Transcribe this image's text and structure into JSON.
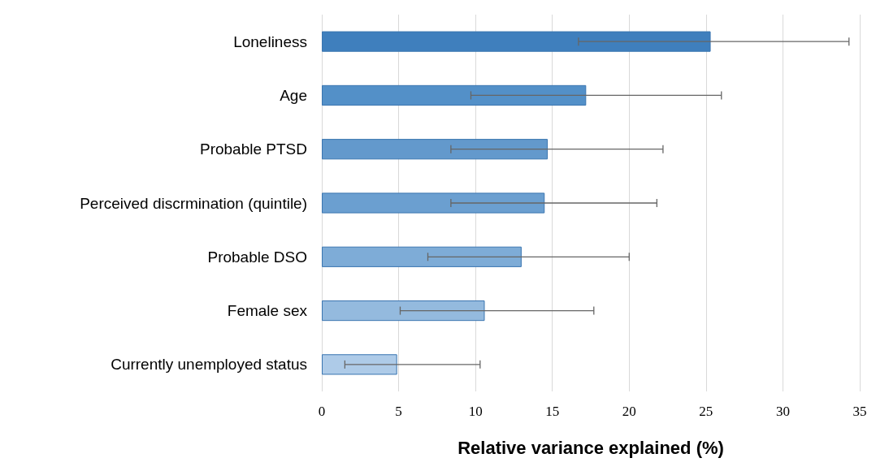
{
  "chart_data": {
    "type": "bar",
    "orientation": "horizontal",
    "xlabel": "Relative variance explained (%)",
    "categories": [
      "Loneliness",
      "Age",
      "Probable PTSD",
      "Perceived discrmination (quintile)",
      "Probable DSO",
      "Female sex",
      "Currently unemployed status"
    ],
    "values": [
      25.3,
      17.2,
      14.7,
      14.5,
      13.0,
      10.6,
      4.9
    ],
    "colors": [
      "#3f7fbd",
      "#5390c8",
      "#6399cc",
      "#6b9fd0",
      "#7eacd7",
      "#94bade",
      "#aecbe8"
    ],
    "errors": [
      [
        16.7,
        34.3
      ],
      [
        9.7,
        26.0
      ],
      [
        8.4,
        22.2
      ],
      [
        8.4,
        21.8
      ],
      [
        6.9,
        20.0
      ],
      [
        5.1,
        17.7
      ],
      [
        1.5,
        10.3
      ]
    ],
    "xlim": [
      0,
      35
    ],
    "xticks": [
      0,
      5,
      10,
      15,
      20,
      25,
      30,
      35
    ],
    "grid": "x"
  }
}
